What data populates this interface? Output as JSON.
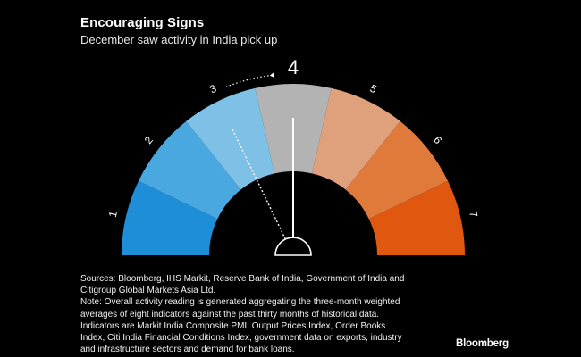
{
  "header": {
    "title": "Encouraging Signs",
    "subtitle": "December saw activity in India pick up"
  },
  "chart_data": {
    "type": "gauge",
    "segments": [
      {
        "label": "1",
        "color": "#1f8ed8"
      },
      {
        "label": "2",
        "color": "#49a8e0"
      },
      {
        "label": "3",
        "color": "#7ec0e6"
      },
      {
        "label": "4",
        "color": "#b3b3b3"
      },
      {
        "label": "5",
        "color": "#dfa07c"
      },
      {
        "label": "6",
        "color": "#e07a3b"
      },
      {
        "label": "7",
        "color": "#e0570f"
      }
    ],
    "range": [
      1,
      7
    ],
    "current_reading": 4,
    "previous_reading": 3,
    "current_label": "4"
  },
  "footer": {
    "notes": [
      "Sources: Bloomberg, IHS Markit, Reserve Bank of India, Government of India and",
      "Citigroup Global Markets Asia Ltd.",
      "Note: Overall activity reading is generated aggregating the three-month weighted",
      "averages of eight indicators against the past thirty months of historical data.",
      "Indicators are Markit India Composite PMI, Output Prices Index, Order Books",
      "Index, Citi India Financial Conditions Index, government data on exports, industry",
      "and infrastructure sectors and demand for bank loans."
    ],
    "brand": "Bloomberg"
  }
}
